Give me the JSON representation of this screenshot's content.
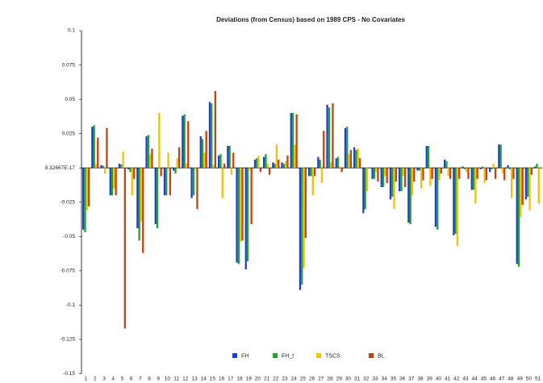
{
  "chart_data": {
    "type": "bar",
    "title": "Deviations (from Census) based on 1989 CPS  - No Covariates",
    "categories": [
      1,
      2,
      3,
      4,
      5,
      6,
      7,
      8,
      9,
      10,
      11,
      12,
      13,
      14,
      15,
      16,
      17,
      18,
      19,
      20,
      21,
      22,
      23,
      24,
      25,
      26,
      27,
      28,
      29,
      30,
      31,
      32,
      33,
      34,
      35,
      36,
      37,
      38,
      39,
      40,
      41,
      42,
      43,
      44,
      45,
      46,
      47,
      48,
      49,
      50,
      51
    ],
    "series": [
      {
        "name": "FH",
        "color": "#1f3fcf",
        "values": [
          -0.045,
          0.03,
          0.002,
          -0.02,
          0.003,
          -0.001,
          -0.044,
          0.023,
          -0.041,
          -0.02,
          -0.002,
          0.038,
          -0.022,
          0.023,
          0.048,
          0.009,
          0.016,
          -0.069,
          -0.074,
          0.006,
          0.008,
          0.004,
          0.004,
          0.04,
          -0.089,
          -0.006,
          0.008,
          0.046,
          0.007,
          0.029,
          0.015,
          -0.033,
          -0.008,
          -0.014,
          -0.023,
          -0.017,
          -0.04,
          -0.002,
          0.016,
          -0.043,
          0.006,
          -0.049,
          0.001,
          -0.016,
          -0.001,
          -0.003,
          0.017,
          0.002,
          -0.07,
          -0.023,
          0.001
        ]
      },
      {
        "name": "FH_t",
        "color": "#1fa32a",
        "values": [
          -0.047,
          0.031,
          0.0015,
          -0.02,
          0.0025,
          -0.003,
          -0.053,
          0.024,
          -0.044,
          -0.02,
          -0.004,
          0.039,
          -0.02,
          0.021,
          0.047,
          0.01,
          0.016,
          -0.07,
          -0.068,
          0.007,
          0.01,
          0.003,
          0.003,
          0.04,
          -0.085,
          -0.006,
          0.006,
          0.044,
          0.008,
          0.03,
          0.013,
          -0.03,
          -0.008,
          -0.014,
          -0.021,
          -0.017,
          -0.041,
          -0.002,
          0.016,
          -0.045,
          0.005,
          -0.048,
          -0.001,
          -0.016,
          0.001,
          -0.001,
          0.017,
          -0.001,
          -0.072,
          -0.021,
          0.003
        ]
      },
      {
        "name": "TSCS",
        "color": "#f2c200",
        "values": [
          -0.031,
          0.003,
          -0.004,
          -0.015,
          0.012,
          -0.02,
          -0.039,
          0.01,
          0.04,
          0.011,
          0.007,
          0.003,
          -0.001,
          0.011,
          0.002,
          -0.022,
          -0.005,
          -0.054,
          -0.0015,
          0.009,
          0.003,
          0.017,
          0.005,
          0.017,
          -0.073,
          -0.02,
          -0.011,
          0.004,
          0.001,
          0.01,
          0.014,
          -0.017,
          -0.003,
          -0.006,
          -0.03,
          -0.006,
          -0.02,
          -0.015,
          -0.013,
          -0.009,
          -0.006,
          -0.057,
          -0.003,
          -0.026,
          -0.011,
          0.003,
          -0.004,
          -0.022,
          -0.036,
          -0.031,
          -0.026
        ]
      },
      {
        "name": "BL",
        "color": "#c8400b",
        "values": [
          -0.028,
          0.022,
          0.029,
          -0.02,
          -0.117,
          -0.008,
          -0.062,
          0.014,
          -0.006,
          -0.02,
          0.015,
          0.034,
          -0.03,
          0.027,
          0.056,
          0.003,
          0.011,
          -0.053,
          -0.041,
          -0.003,
          -0.005,
          0.006,
          0.009,
          0.039,
          -0.051,
          -0.006,
          0.027,
          0.047,
          -0.003,
          0.013,
          0.007,
          0,
          -0.01,
          -0.011,
          -0.01,
          -0.014,
          -0.01,
          -0.009,
          -0.008,
          -0.004,
          -0.008,
          -0.008,
          -0.008,
          -0.008,
          -0.009,
          -0.008,
          -0.009,
          -0.008,
          -0.027,
          -0.005,
          null
        ]
      }
    ],
    "ylim": [
      -0.15,
      0.1
    ],
    "yticks": [
      -0.15,
      -0.125,
      -0.1,
      -0.075,
      -0.05,
      -0.025,
      {
        "value": 8.32667e-17,
        "label": "8.32667E-17"
      },
      0.025,
      0.05,
      0.075,
      0.1
    ],
    "legend": "bottom"
  }
}
